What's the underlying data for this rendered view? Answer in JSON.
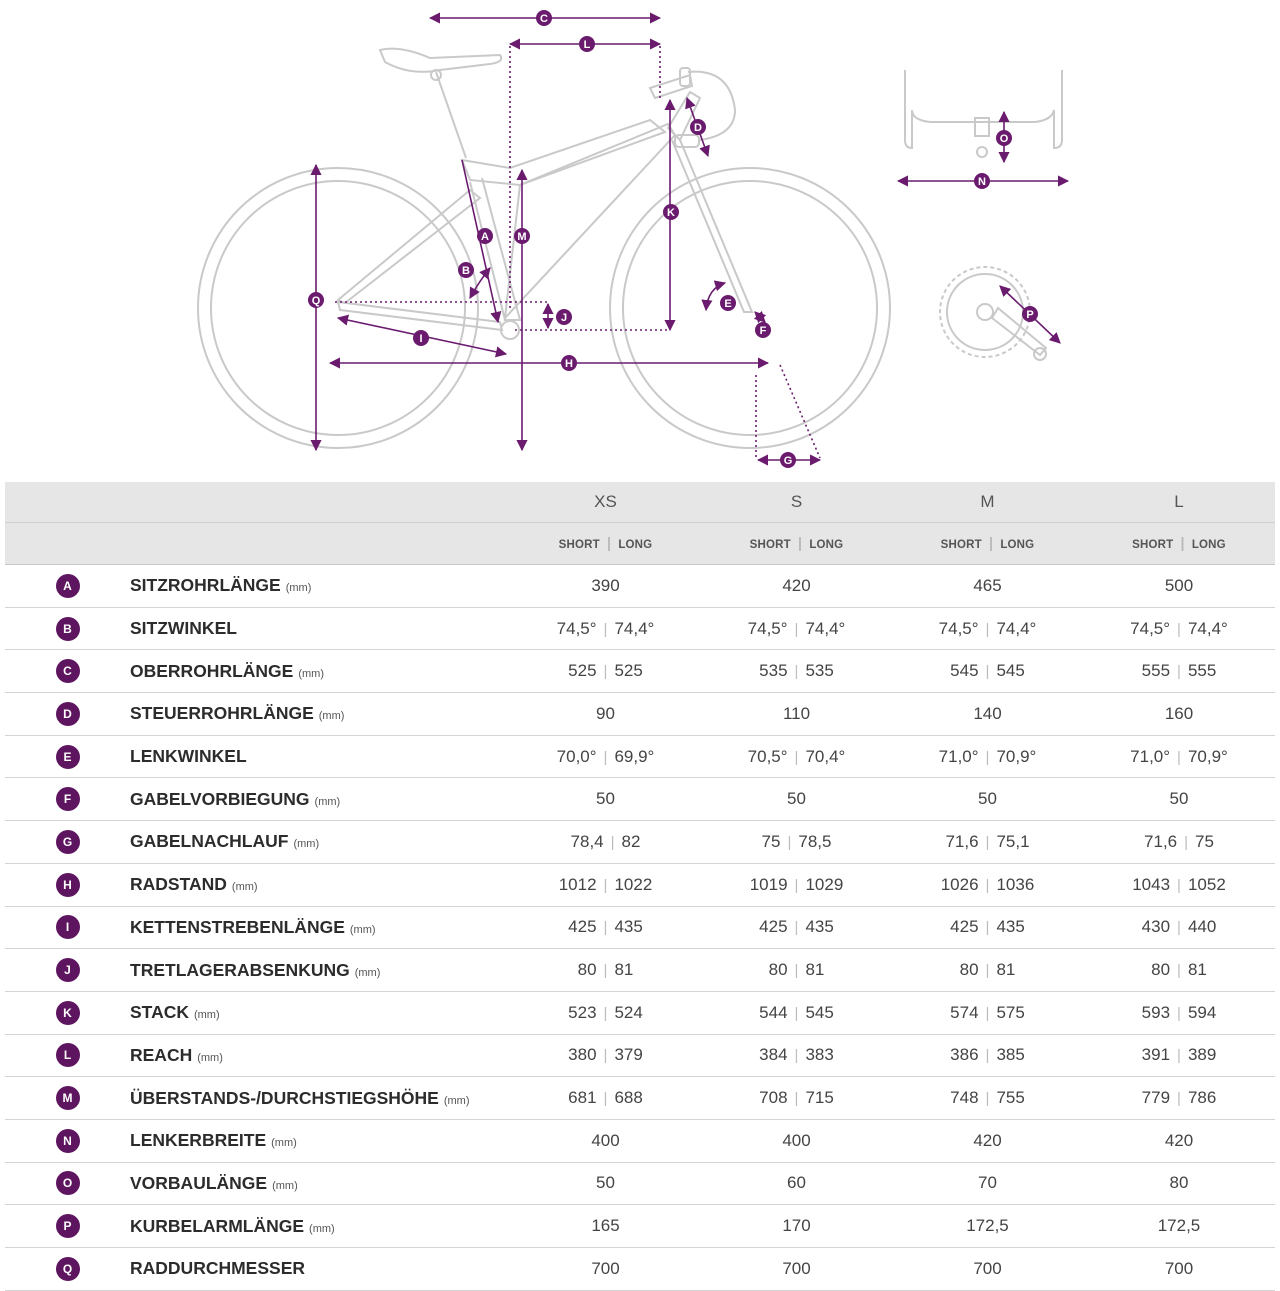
{
  "diagram": {
    "accent_color": "#6a1b6e",
    "markers": [
      "A",
      "B",
      "C",
      "D",
      "E",
      "F",
      "G",
      "H",
      "I",
      "J",
      "K",
      "L",
      "M",
      "N",
      "O",
      "P",
      "Q"
    ]
  },
  "table": {
    "sizes": [
      "XS",
      "S",
      "M",
      "L"
    ],
    "sub_short": "SHORT",
    "sub_long": "LONG",
    "rows": [
      {
        "letter": "A",
        "label": "SITZROHRLÄNGE",
        "unit": "(mm)",
        "values": [
          [
            "390"
          ],
          [
            "420"
          ],
          [
            "465"
          ],
          [
            "500"
          ]
        ]
      },
      {
        "letter": "B",
        "label": "SITZWINKEL",
        "unit": "",
        "values": [
          [
            "74,5°",
            "74,4°"
          ],
          [
            "74,5°",
            "74,4°"
          ],
          [
            "74,5°",
            "74,4°"
          ],
          [
            "74,5°",
            "74,4°"
          ]
        ]
      },
      {
        "letter": "C",
        "label": "OBERROHRLÄNGE",
        "unit": "(mm)",
        "values": [
          [
            "525",
            "525"
          ],
          [
            "535",
            "535"
          ],
          [
            "545",
            "545"
          ],
          [
            "555",
            "555"
          ]
        ]
      },
      {
        "letter": "D",
        "label": "STEUERROHRLÄNGE",
        "unit": "(mm)",
        "values": [
          [
            "90"
          ],
          [
            "110"
          ],
          [
            "140"
          ],
          [
            "160"
          ]
        ]
      },
      {
        "letter": "E",
        "label": "LENKWINKEL",
        "unit": "",
        "values": [
          [
            "70,0°",
            "69,9°"
          ],
          [
            "70,5°",
            "70,4°"
          ],
          [
            "71,0°",
            "70,9°"
          ],
          [
            "71,0°",
            "70,9°"
          ]
        ]
      },
      {
        "letter": "F",
        "label": "GABELVORBIEGUNG",
        "unit": "(mm)",
        "values": [
          [
            "50"
          ],
          [
            "50"
          ],
          [
            "50"
          ],
          [
            "50"
          ]
        ]
      },
      {
        "letter": "G",
        "label": "GABELNACHLAUF",
        "unit": "(mm)",
        "values": [
          [
            "78,4",
            "82"
          ],
          [
            "75",
            "78,5"
          ],
          [
            "71,6",
            "75,1"
          ],
          [
            "71,6",
            "75"
          ]
        ]
      },
      {
        "letter": "H",
        "label": "RADSTAND",
        "unit": "(mm)",
        "values": [
          [
            "1012",
            "1022"
          ],
          [
            "1019",
            "1029"
          ],
          [
            "1026",
            "1036"
          ],
          [
            "1043",
            "1052"
          ]
        ]
      },
      {
        "letter": "I",
        "label": "KETTENSTREBENLÄNGE",
        "unit": "(mm)",
        "values": [
          [
            "425",
            "435"
          ],
          [
            "425",
            "435"
          ],
          [
            "425",
            "435"
          ],
          [
            "430",
            "440"
          ]
        ]
      },
      {
        "letter": "J",
        "label": "TRETLAGERABSENKUNG",
        "unit": "(mm)",
        "values": [
          [
            "80",
            "81"
          ],
          [
            "80",
            "81"
          ],
          [
            "80",
            "81"
          ],
          [
            "80",
            "81"
          ]
        ]
      },
      {
        "letter": "K",
        "label": "STACK",
        "unit": "(mm)",
        "values": [
          [
            "523",
            "524"
          ],
          [
            "544",
            "545"
          ],
          [
            "574",
            "575"
          ],
          [
            "593",
            "594"
          ]
        ]
      },
      {
        "letter": "L",
        "label": "REACH",
        "unit": "(mm)",
        "values": [
          [
            "380",
            "379"
          ],
          [
            "384",
            "383"
          ],
          [
            "386",
            "385"
          ],
          [
            "391",
            "389"
          ]
        ]
      },
      {
        "letter": "M",
        "label": "ÜBERSTANDS-/DURCHSTIEGSHÖHE",
        "unit": "(mm)",
        "values": [
          [
            "681",
            "688"
          ],
          [
            "708",
            "715"
          ],
          [
            "748",
            "755"
          ],
          [
            "779",
            "786"
          ]
        ]
      },
      {
        "letter": "N",
        "label": "LENKERBREITE",
        "unit": "(mm)",
        "values": [
          [
            "400"
          ],
          [
            "400"
          ],
          [
            "420"
          ],
          [
            "420"
          ]
        ]
      },
      {
        "letter": "O",
        "label": "VORBAULÄNGE",
        "unit": "(mm)",
        "values": [
          [
            "50"
          ],
          [
            "60"
          ],
          [
            "70"
          ],
          [
            "80"
          ]
        ]
      },
      {
        "letter": "P",
        "label": "KURBELARMLÄNGE",
        "unit": "(mm)",
        "values": [
          [
            "165"
          ],
          [
            "170"
          ],
          [
            "172,5"
          ],
          [
            "172,5"
          ]
        ]
      },
      {
        "letter": "Q",
        "label": "RADDURCHMESSER",
        "unit": "",
        "values": [
          [
            "700"
          ],
          [
            "700"
          ],
          [
            "700"
          ],
          [
            "700"
          ]
        ]
      }
    ]
  }
}
